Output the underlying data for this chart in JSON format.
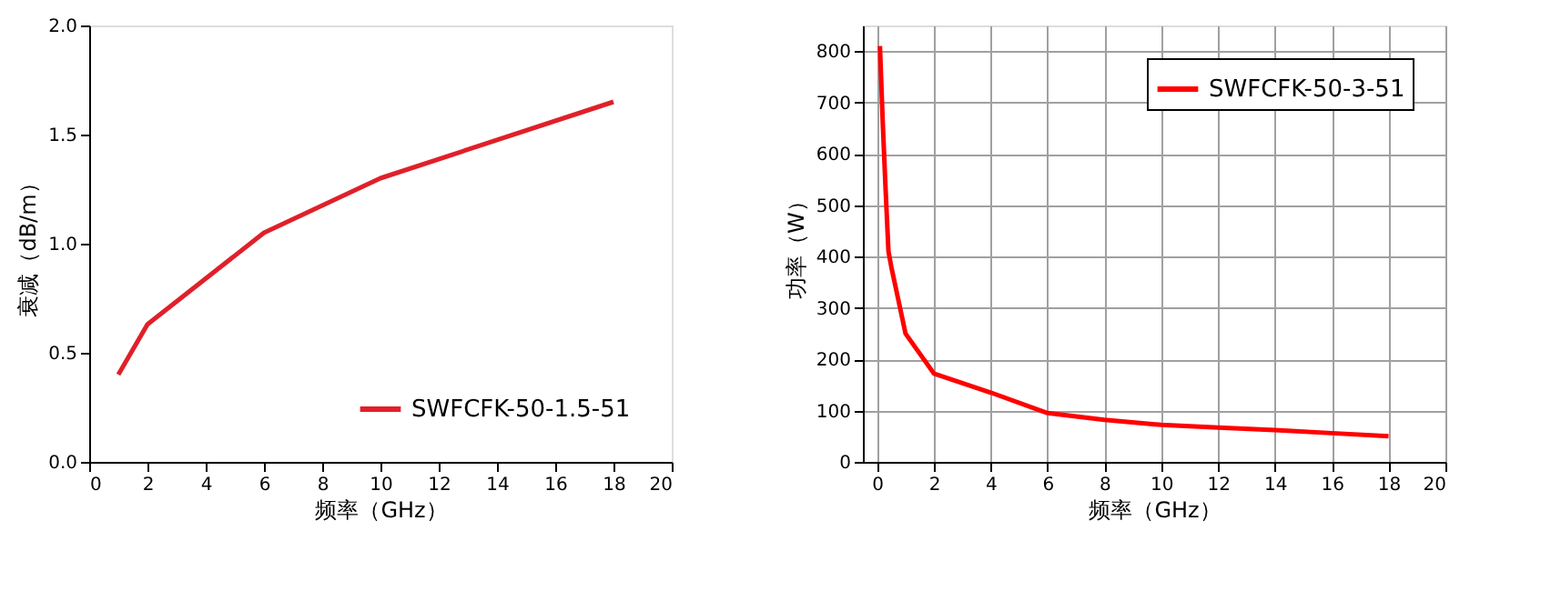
{
  "chart_data": [
    {
      "type": "line",
      "xlabel": "频率（GHz）",
      "ylabel": "衰减（dB/m）",
      "x": [
        1,
        2,
        6,
        10,
        18
      ],
      "series": [
        {
          "name": "SWFCFK-50-1.5-51",
          "color": "#e0202a",
          "values": [
            0.4,
            0.63,
            1.05,
            1.3,
            1.65
          ]
        }
      ],
      "xlim": [
        0,
        20
      ],
      "xticks": [
        0,
        2,
        4,
        6,
        8,
        10,
        12,
        14,
        16,
        18,
        20
      ],
      "ylim": [
        0,
        2
      ],
      "yticks": [
        {
          "value": 0,
          "label": "0.0"
        },
        0.5,
        {
          "value": 1,
          "label": "1.0"
        },
        1.5,
        {
          "value": 2,
          "label": "2.0"
        }
      ],
      "grid": false,
      "legend": "bottom right",
      "marker": "none",
      "line_style": "solid"
    },
    {
      "type": "line",
      "xlabel": "频率（GHz）",
      "ylabel": "功率（W）",
      "x": [
        0.1,
        0.2,
        0.3,
        0.4,
        0.5,
        1,
        2,
        4,
        6,
        8,
        10,
        12,
        14,
        16,
        18
      ],
      "series": [
        {
          "name": "SWFCFK-50-3-51",
          "color": "#ff0000",
          "values": [
            810,
            660,
            530,
            410,
            380,
            250,
            172,
            135,
            95,
            82,
            72,
            67,
            62,
            56,
            50
          ]
        }
      ],
      "xlim": [
        -0.5,
        20
      ],
      "xticks": [
        0,
        2,
        4,
        6,
        8,
        10,
        12,
        14,
        16,
        18,
        20
      ],
      "ylim": [
        0,
        850
      ],
      "yticks": [
        0,
        100,
        200,
        300,
        400,
        500,
        600,
        700,
        800
      ],
      "grid": true,
      "legend": "top right",
      "marker": "none",
      "line_style": "solid"
    }
  ]
}
